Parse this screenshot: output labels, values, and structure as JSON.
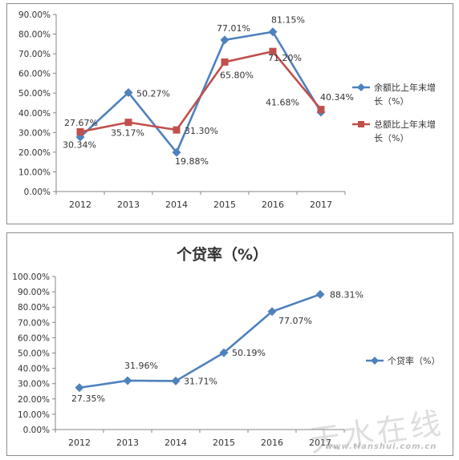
{
  "chart_data": [
    {
      "type": "line",
      "title": "",
      "categories": [
        "2012",
        "2013",
        "2014",
        "2015",
        "2016",
        "2017"
      ],
      "ylim": [
        0,
        90
      ],
      "yticks": [
        "0.00%",
        "10.00%",
        "20.00%",
        "30.00%",
        "40.00%",
        "50.00%",
        "60.00%",
        "70.00%",
        "80.00%",
        "90.00%"
      ],
      "grid": false,
      "legend_position": "right",
      "series": [
        {
          "name": "余额比上年末增长（%）",
          "name_lines": [
            "余额比上年末增",
            "长（%）"
          ],
          "values": [
            27.67,
            50.27,
            19.88,
            77.01,
            81.15,
            40.34
          ],
          "labels": [
            "27.67%",
            "50.27%",
            "19.88%",
            "77.01%",
            "81.15%",
            "40.34%"
          ],
          "color": "#4f81bd",
          "marker": "diamond"
        },
        {
          "name": "总额比上年末增长（%）",
          "name_lines": [
            "总额比上年末增",
            "长（%）"
          ],
          "values": [
            30.34,
            35.17,
            31.3,
            65.8,
            71.2,
            41.68
          ],
          "labels": [
            "30.34%",
            "35.17%",
            "31.30%",
            "65.80%",
            "71.20%",
            "41.68%"
          ],
          "color": "#c0504d",
          "marker": "square"
        }
      ]
    },
    {
      "type": "line",
      "title": "个贷率（%）",
      "categories": [
        "2012",
        "2013",
        "2014",
        "2015",
        "2016",
        "2017"
      ],
      "ylim": [
        0,
        100
      ],
      "yticks": [
        "0.00%",
        "10.00%",
        "20.00%",
        "30.00%",
        "40.00%",
        "50.00%",
        "60.00%",
        "70.00%",
        "80.00%",
        "90.00%",
        "100.00%"
      ],
      "grid": false,
      "legend_position": "right",
      "series": [
        {
          "name": "个贷率（%）",
          "name_lines": [
            "个贷率（%）"
          ],
          "values": [
            27.35,
            31.96,
            31.71,
            50.19,
            77.07,
            88.31
          ],
          "labels": [
            "27.35%",
            "31.96%",
            "31.71%",
            "50.19%",
            "77.07%",
            "88.31%"
          ],
          "color": "#4f81bd",
          "marker": "diamond"
        }
      ]
    }
  ],
  "watermark": {
    "text": "天水在线",
    "url": "www.tianshui.com.cn"
  }
}
